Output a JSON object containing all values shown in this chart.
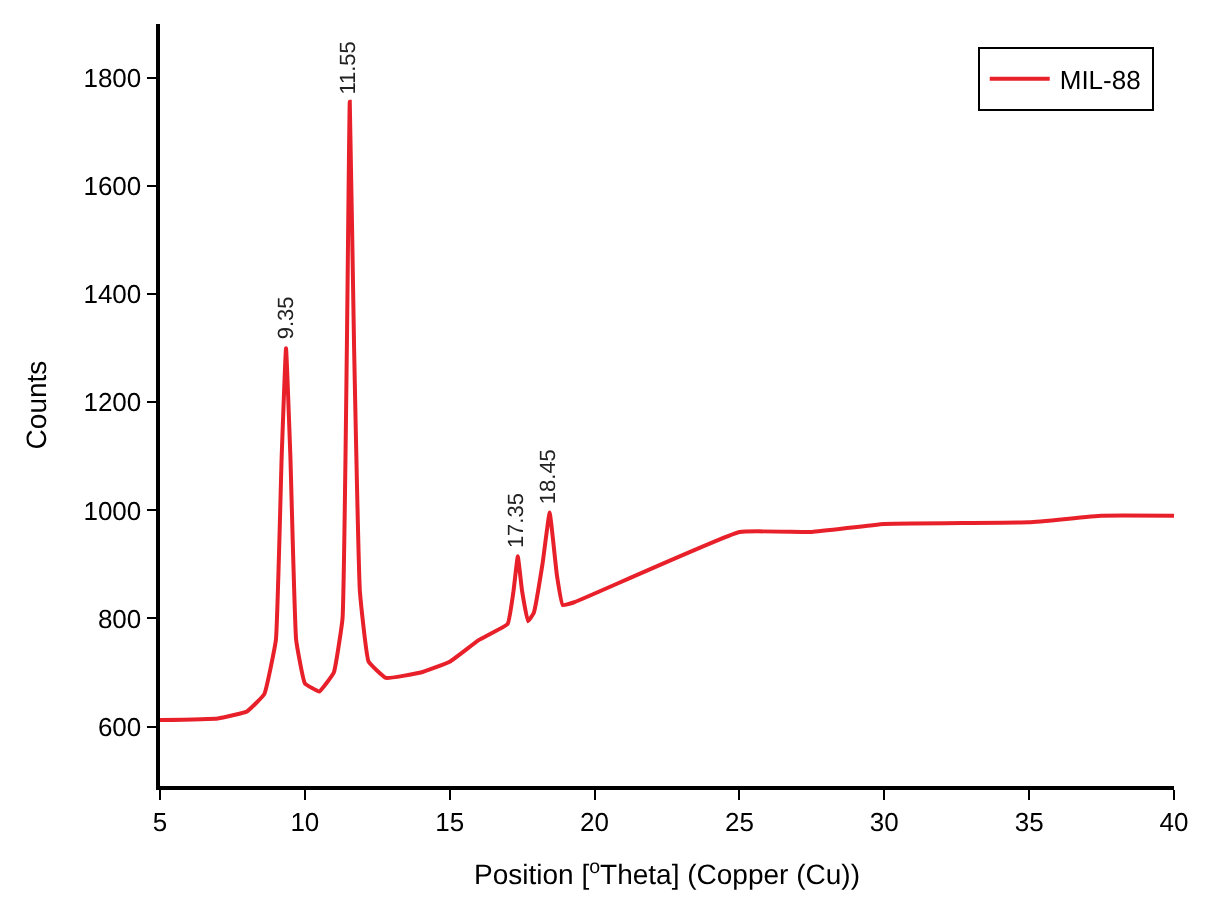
{
  "chart_data": {
    "type": "line",
    "xlabel": "Position [$^{o}$Theta] (Copper (Cu))",
    "ylabel": "Counts",
    "xlim": [
      5,
      40
    ],
    "xticks": [
      5,
      10,
      15,
      20,
      25,
      30,
      35,
      40
    ],
    "ylim": [
      490,
      1900
    ],
    "yticks": [
      600,
      800,
      1000,
      1200,
      1400,
      1600,
      1800
    ],
    "grid": false,
    "legend": "top right",
    "marker": "none",
    "line_style": "solid",
    "series": [
      {
        "name": "MIL-88",
        "color": "#e8202a",
        "x": [
          5,
          7,
          8,
          8.6,
          9.0,
          9.2,
          9.35,
          9.5,
          9.7,
          10.0,
          10.5,
          11.0,
          11.3,
          11.45,
          11.55,
          11.7,
          11.9,
          12.2,
          12.8,
          14,
          15,
          16,
          17.0,
          17.2,
          17.35,
          17.5,
          17.7,
          17.9,
          18.2,
          18.45,
          18.7,
          18.9,
          19.3,
          25,
          27.5,
          30,
          35,
          37.5,
          40
        ],
        "values": [
          612,
          615,
          628,
          660,
          760,
          1100,
          1300,
          1100,
          760,
          680,
          665,
          700,
          800,
          1300,
          1756,
          1300,
          850,
          720,
          690,
          700,
          720,
          760,
          790,
          850,
          915,
          850,
          795,
          810,
          900,
          996,
          880,
          825,
          830,
          960,
          960,
          975,
          978,
          990,
          990
        ]
      }
    ],
    "annotations": [
      {
        "text": "9.35",
        "x": 9.35,
        "y": 1300
      },
      {
        "text": "11.55",
        "x": 11.55,
        "y": 1756
      },
      {
        "text": "17.35",
        "x": 17.35,
        "y": 915
      },
      {
        "text": "18.45",
        "x": 18.45,
        "y": 996
      }
    ]
  }
}
